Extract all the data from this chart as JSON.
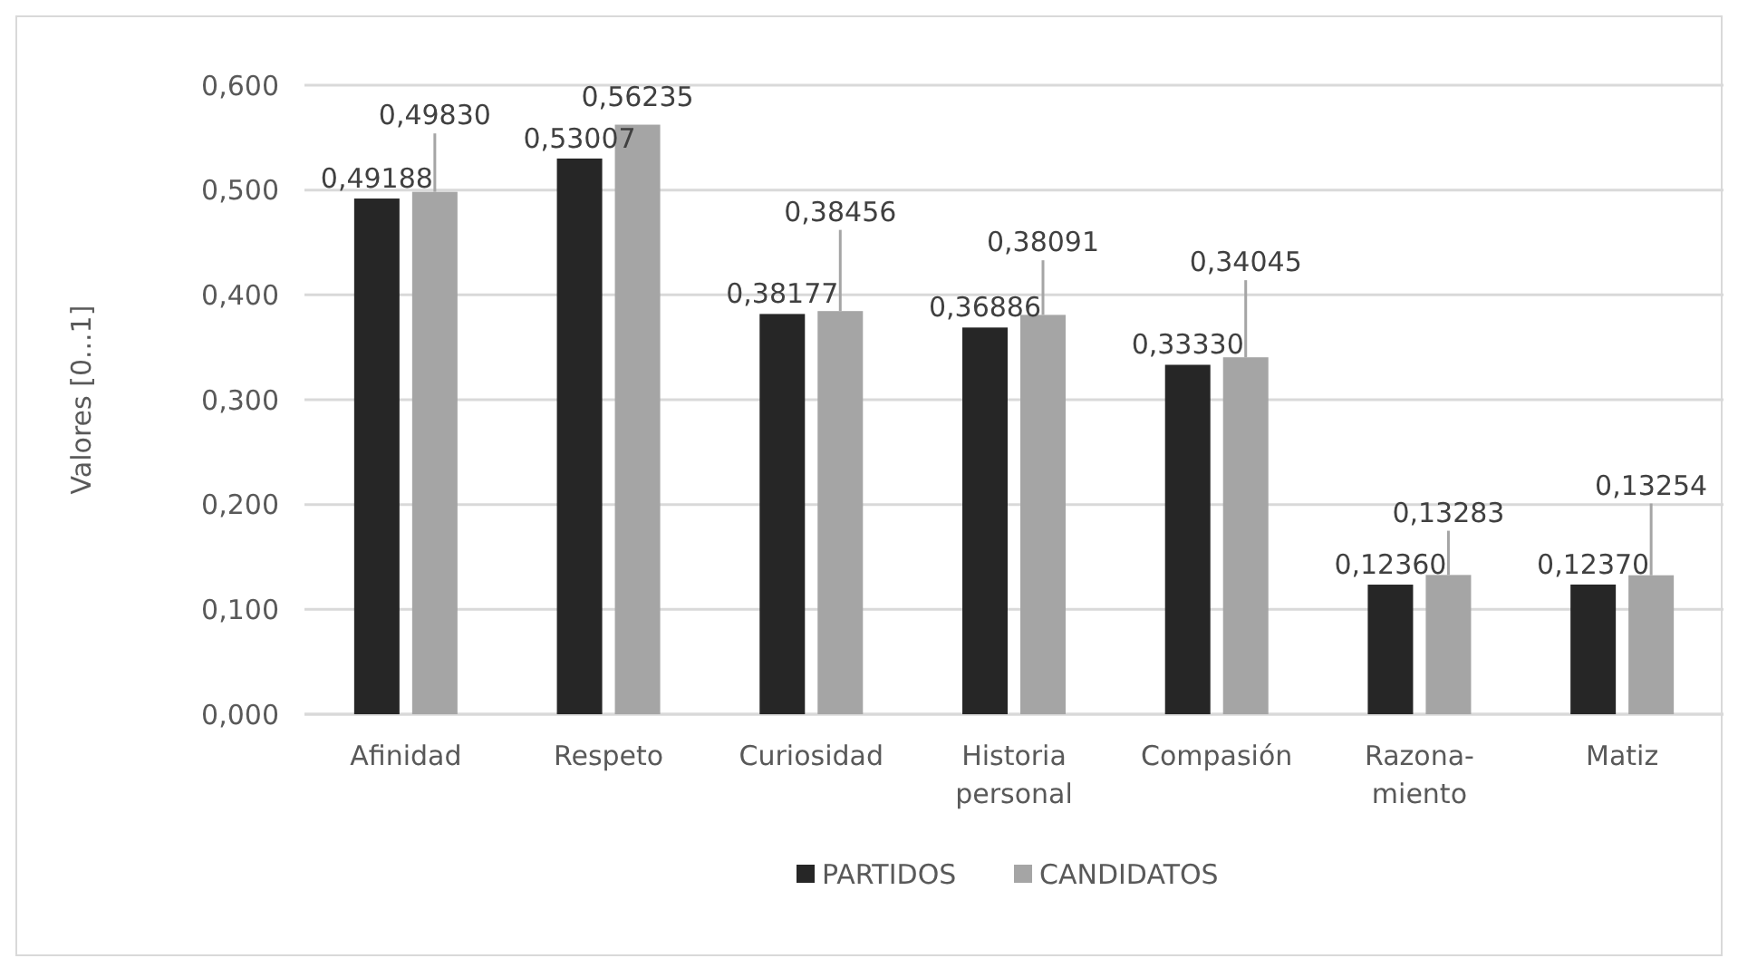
{
  "chart_data": {
    "type": "bar",
    "ylabel": "Valores [0...1]",
    "categories": [
      "Afinidad",
      "Respeto",
      "Curiosidad",
      "Historia personal",
      "Compasión",
      "Razona-miento",
      "Matiz"
    ],
    "series": [
      {
        "name": "PARTIDOS",
        "color": "#262626",
        "values": [
          0.49188,
          0.53007,
          0.38177,
          0.36886,
          0.3333,
          0.1236,
          0.1237
        ],
        "value_labels": [
          "0,49188",
          "0,53007",
          "0,38177",
          "0,36886",
          "0,33330",
          "0,12360",
          "0,12370"
        ]
      },
      {
        "name": "CANDIDATOS",
        "color": "#a5a5a5",
        "values": [
          0.4983,
          0.56235,
          0.38456,
          0.38091,
          0.34045,
          0.13283,
          0.13254
        ],
        "value_labels": [
          "0,49830",
          "0,56235",
          "0,38456",
          "0,38091",
          "0,34045",
          "0,13283",
          "0,13254"
        ],
        "errors": [
          [
            0.4983,
            0.554
          ],
          null,
          [
            0.38456,
            0.462
          ],
          [
            0.38091,
            0.433
          ],
          [
            0.34045,
            0.414
          ],
          [
            0.13283,
            0.175
          ],
          [
            0.13254,
            0.201
          ]
        ]
      }
    ],
    "ylim": [
      0,
      0.6
    ],
    "yticks": [
      {
        "value": 0,
        "label": "0,000"
      },
      {
        "value": 0.1,
        "label": "0,100"
      },
      {
        "value": 0.2,
        "label": "0,200"
      },
      {
        "value": 0.3,
        "label": "0,300"
      },
      {
        "value": 0.4,
        "label": "0,400"
      },
      {
        "value": 0.5,
        "label": "0,500"
      },
      {
        "value": 0.6,
        "label": "0,600"
      }
    ],
    "grid": "y",
    "legend": "bottom"
  }
}
